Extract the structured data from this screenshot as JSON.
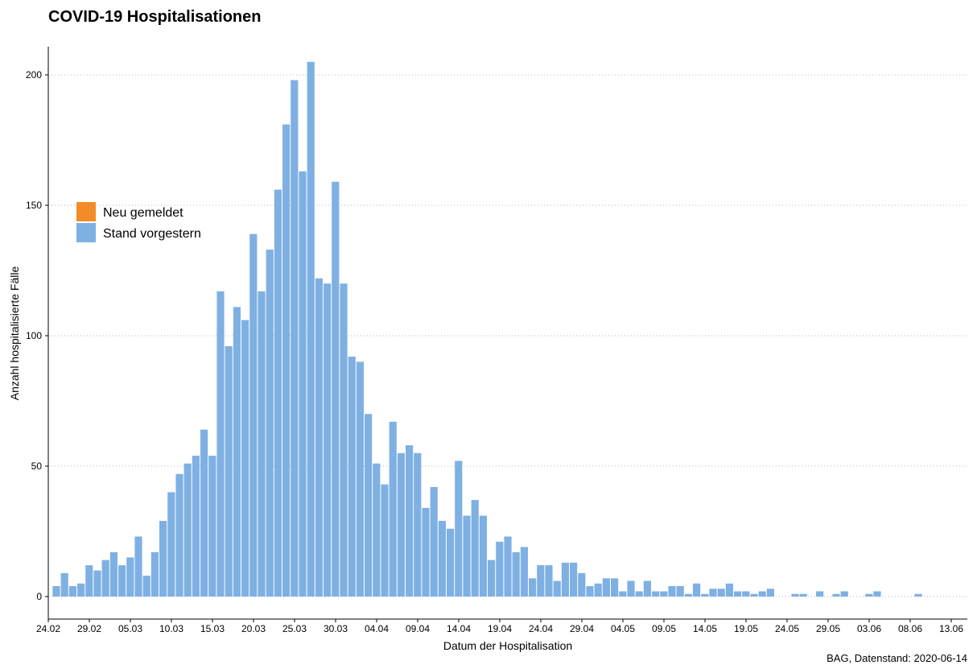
{
  "chart_data": {
    "type": "bar",
    "title": "COVID-19 Hospitalisationen",
    "xlabel": "Datum der Hospitalisation",
    "ylabel": "Anzahl hospitalisierte Fälle",
    "caption": "BAG, Datenstand: 2020-06-14",
    "ylim": [
      0,
      205
    ],
    "yticks": [
      0,
      50,
      100,
      150,
      200
    ],
    "grid": "horizontal dotted",
    "legend_position": "left",
    "colors": {
      "Neu gemeldet": "#f28c28",
      "Stand vorgestern": "#7fb0e3"
    },
    "x_start_date": "2020-02-24",
    "xticks": [
      "24.02",
      "29.02",
      "05.03",
      "10.03",
      "15.03",
      "20.03",
      "25.03",
      "30.03",
      "04.04",
      "09.04",
      "14.04",
      "19.04",
      "24.04",
      "29.04",
      "04.05",
      "09.05",
      "14.05",
      "19.05",
      "24.05",
      "29.05",
      "03.06",
      "08.06",
      "13.06"
    ],
    "series": [
      {
        "name": "Neu gemeldet",
        "values": []
      },
      {
        "name": "Stand vorgestern",
        "values": [
          4,
          9,
          4,
          5,
          12,
          10,
          14,
          17,
          12,
          15,
          23,
          8,
          17,
          29,
          40,
          47,
          51,
          54,
          64,
          54,
          117,
          96,
          111,
          106,
          139,
          117,
          133,
          156,
          181,
          198,
          163,
          205,
          122,
          120,
          159,
          120,
          92,
          90,
          70,
          51,
          43,
          67,
          55,
          58,
          55,
          34,
          42,
          29,
          26,
          52,
          31,
          37,
          31,
          14,
          21,
          23,
          17,
          19,
          7,
          12,
          12,
          6,
          13,
          13,
          9,
          4,
          5,
          7,
          7,
          2,
          6,
          2,
          6,
          2,
          2,
          4,
          4,
          1,
          5,
          1,
          3,
          3,
          5,
          2,
          2,
          1,
          2,
          3,
          0,
          0,
          1,
          1,
          0,
          2,
          0,
          1,
          2,
          0,
          0,
          1,
          2,
          0,
          0,
          0,
          0,
          1,
          0,
          0,
          0,
          0,
          0,
          0
        ]
      }
    ]
  }
}
